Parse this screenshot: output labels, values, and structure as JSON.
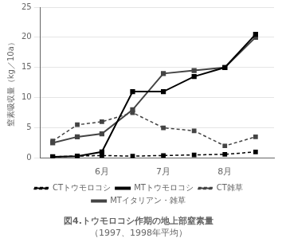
{
  "chart_data": {
    "type": "line",
    "title": "図4.トウモロコシ作期の地上部窒素量",
    "subtitle": "（1997、1998年平均）",
    "y_label": "窒素吸収量（kg／10a）",
    "x": [
      5.2,
      5.6,
      6.0,
      6.5,
      7.0,
      7.5,
      8.0,
      8.5
    ],
    "xlim": [
      5.0,
      8.8
    ],
    "xticks": [
      {
        "value": 6.0,
        "label": "6月"
      },
      {
        "value": 7.0,
        "label": "7月"
      },
      {
        "value": 8.0,
        "label": "8月"
      }
    ],
    "ylim": [
      0,
      25
    ],
    "yticks": [
      0,
      5,
      10,
      15,
      20,
      25
    ],
    "grid": "y",
    "legend": "bottom",
    "series": [
      {
        "name": "CTトウモロコシ",
        "color": "#000000",
        "line_style": "dashed",
        "marker": "square",
        "values": [
          0.2,
          0.3,
          0.4,
          0.3,
          0.4,
          0.5,
          0.6,
          1.0
        ]
      },
      {
        "name": "MTトウモロコシ",
        "color": "#000000",
        "line_style": "solid",
        "marker": "square",
        "values": [
          0.2,
          0.3,
          1.0,
          11.0,
          11.0,
          13.5,
          15.0,
          20.5
        ]
      },
      {
        "name": "CT雑草",
        "color": "#444444",
        "line_style": "dashed",
        "marker": "square",
        "values": [
          2.8,
          5.5,
          6.0,
          7.5,
          5.0,
          4.5,
          2.0,
          3.5
        ]
      },
      {
        "name": "MTイタリアン・雑草",
        "color": "#444444",
        "line_style": "solid",
        "marker": "square",
        "values": [
          2.5,
          3.5,
          4.0,
          8.0,
          14.0,
          14.5,
          15.0,
          20.0
        ]
      }
    ]
  }
}
